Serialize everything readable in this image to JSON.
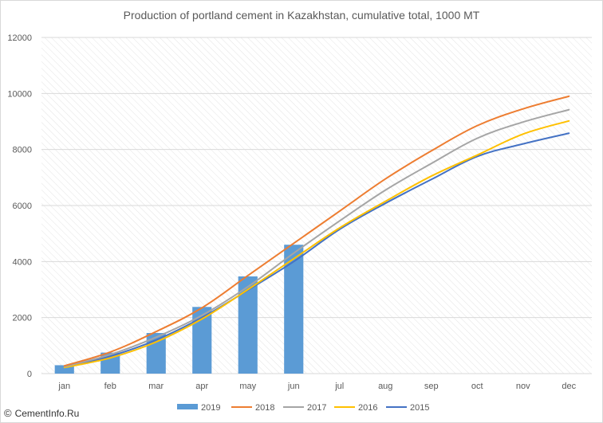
{
  "watermark": {
    "symbol": "©",
    "text": "CementInfo.Ru"
  },
  "colors": {
    "2019": "#5b9bd5",
    "2018": "#ed7d31",
    "2017": "#a5a5a5",
    "2016": "#ffc000",
    "2015": "#4472c4",
    "grid": "#d9d9d9",
    "hatch": "#e4e4e4"
  },
  "chart_data": {
    "type": "bar",
    "title": "Production of portland cement in Kazakhstan, cumulative total, 1000 MT",
    "xlabel": "",
    "ylabel": "",
    "categories": [
      "jan",
      "feb",
      "mar",
      "apr",
      "may",
      "jun",
      "jul",
      "aug",
      "sep",
      "oct",
      "nov",
      "dec"
    ],
    "ylim": [
      0,
      12000
    ],
    "yticks": [
      0,
      2000,
      4000,
      6000,
      8000,
      10000,
      12000
    ],
    "grid": true,
    "legend_position": "bottom",
    "bar_series": [
      {
        "name": "2019",
        "values": [
          300,
          750,
          1450,
          2380,
          3470,
          4600
        ]
      }
    ],
    "line_series": [
      {
        "name": "2018",
        "values": [
          280,
          770,
          1500,
          2350,
          3500,
          4650,
          5800,
          6950,
          7950,
          8850,
          9450,
          9900
        ]
      },
      {
        "name": "2017",
        "values": [
          250,
          680,
          1300,
          2080,
          3100,
          4300,
          5450,
          6550,
          7500,
          8400,
          8980,
          9420
        ]
      },
      {
        "name": "2016",
        "values": [
          220,
          560,
          1130,
          1950,
          3000,
          4100,
          5200,
          6150,
          7050,
          7800,
          8550,
          9020
        ]
      },
      {
        "name": "2015",
        "values": [
          230,
          620,
          1200,
          2000,
          2980,
          4000,
          5150,
          6080,
          6930,
          7750,
          8200,
          8580
        ]
      }
    ]
  }
}
